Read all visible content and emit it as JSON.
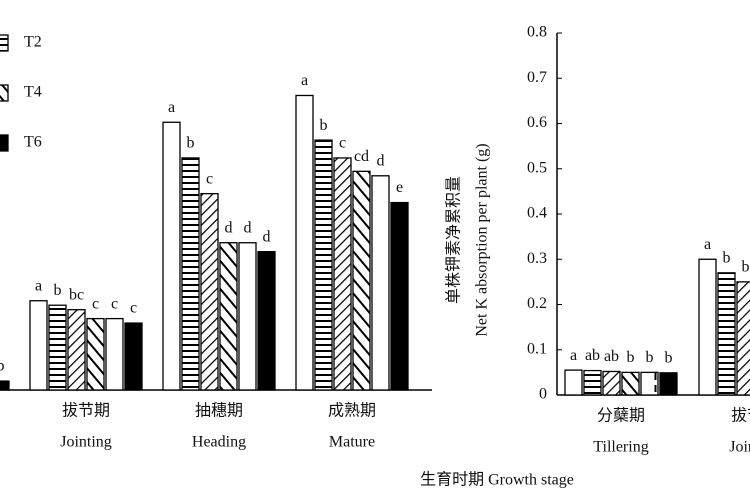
{
  "chart_data": [
    {
      "type": "bar",
      "categories": [
        null,
        {
          "zh": "拔节期",
          "en": "Jointing"
        },
        {
          "zh": "抽穗期",
          "en": "Heading"
        },
        {
          "zh": "成熟期",
          "en": "Mature"
        }
      ],
      "xlabel": "生育时期 Growth stage",
      "ylim": [
        0,
        0.8
      ],
      "series": [
        {
          "pattern": "blank",
          "values": [
            null,
            0.2,
            0.6,
            0.66
          ],
          "letters": [
            null,
            "a",
            "a",
            "a"
          ]
        },
        {
          "name": "T2",
          "pattern": "horizontal",
          "values": [
            null,
            0.19,
            0.52,
            0.56
          ],
          "letters": [
            null,
            "b",
            "b",
            "b"
          ]
        },
        {
          "pattern": "diagonal",
          "values": [
            null,
            0.18,
            0.44,
            0.52
          ],
          "letters": [
            null,
            "bc",
            "c",
            "c"
          ]
        },
        {
          "name": "T4",
          "pattern": "diagonal-back",
          "values": [
            null,
            0.16,
            0.33,
            0.49
          ],
          "letters": [
            null,
            "c",
            "d",
            "cd"
          ]
        },
        {
          "pattern": "dashed",
          "values": [
            null,
            0.16,
            0.33,
            0.48
          ],
          "letters": [
            null,
            "c",
            "d",
            "d"
          ]
        },
        {
          "name": "T6",
          "pattern": "solid",
          "values": [
            0.02,
            0.15,
            0.31,
            0.42
          ],
          "letters": [
            "b",
            "c",
            "d",
            "e"
          ]
        }
      ]
    },
    {
      "type": "bar",
      "categories": [
        {
          "zh": "分蘖期",
          "en": "Tillering"
        },
        {
          "zh": "拔节期",
          "en": "Jointing"
        }
      ],
      "ylabel": {
        "zh": "单株钾素净累积量",
        "en": "Net K absorption per plant (g)"
      },
      "ylim": [
        0,
        0.8
      ],
      "yticks": [
        0,
        0.1,
        0.2,
        0.3,
        0.4,
        0.5,
        0.6,
        0.7,
        0.8
      ],
      "series": [
        {
          "pattern": "blank",
          "values": [
            0.055,
            0.3
          ],
          "letters": [
            "a",
            "a"
          ]
        },
        {
          "pattern": "horizontal",
          "values": [
            0.054,
            0.27
          ],
          "letters": [
            "ab",
            "b"
          ]
        },
        {
          "pattern": "diagonal",
          "values": [
            0.052,
            0.25
          ],
          "letters": [
            "ab",
            "b"
          ]
        },
        {
          "pattern": "diagonal-back",
          "values": [
            0.05,
            null
          ],
          "letters": [
            "b",
            null
          ]
        },
        {
          "pattern": "dashed",
          "values": [
            0.05,
            null
          ],
          "letters": [
            "b",
            null
          ]
        },
        {
          "pattern": "solid",
          "values": [
            0.049,
            null
          ],
          "letters": [
            "b",
            null
          ]
        }
      ]
    }
  ]
}
